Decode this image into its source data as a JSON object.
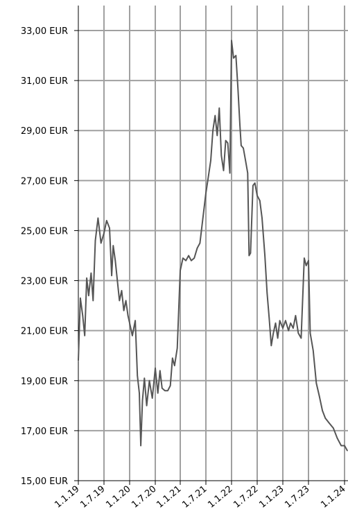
{
  "chart_data": {
    "type": "line",
    "title": "",
    "xlabel": "",
    "ylabel": "",
    "ylim": [
      15,
      34
    ],
    "grid": true,
    "y_ticks": [
      {
        "value": 15,
        "label": "15,00 EUR"
      },
      {
        "value": 17,
        "label": "17,00 EUR"
      },
      {
        "value": 19,
        "label": "19,00 EUR"
      },
      {
        "value": 21,
        "label": "21,00 EUR"
      },
      {
        "value": 23,
        "label": "23,00 EUR"
      },
      {
        "value": 25,
        "label": "25,00 EUR"
      },
      {
        "value": 27,
        "label": "27,00 EUR"
      },
      {
        "value": 29,
        "label": "29,00 EUR"
      },
      {
        "value": 31,
        "label": "31,00 EUR"
      },
      {
        "value": 33,
        "label": "33,00 EUR"
      }
    ],
    "x_ticks": [
      {
        "value": "2019-01-01",
        "label": "1.1.19"
      },
      {
        "value": "2019-07-01",
        "label": "1.7.19"
      },
      {
        "value": "2020-01-01",
        "label": "1.1.20"
      },
      {
        "value": "2020-07-01",
        "label": "1.7.20"
      },
      {
        "value": "2021-01-01",
        "label": "1.1.21"
      },
      {
        "value": "2021-07-01",
        "label": "1.7.21"
      },
      {
        "value": "2022-01-01",
        "label": "1.1.22"
      },
      {
        "value": "2022-07-01",
        "label": "1.7.22"
      },
      {
        "value": "2023-01-01",
        "label": "1.1.23"
      },
      {
        "value": "2023-07-01",
        "label": "1.7.23"
      },
      {
        "value": "2024-01-01",
        "label": "1.1.24"
      }
    ],
    "colors": {
      "line": "#555555",
      "grid": "#a0a0a0",
      "axis": "#000000"
    },
    "series": [
      {
        "points": [
          [
            "2019-01-01",
            19.8
          ],
          [
            "2019-01-15",
            22.3
          ],
          [
            "2019-02-01",
            21.6
          ],
          [
            "2019-02-15",
            20.8
          ],
          [
            "2019-03-01",
            23.1
          ],
          [
            "2019-03-15",
            22.4
          ],
          [
            "2019-04-01",
            23.3
          ],
          [
            "2019-04-15",
            22.2
          ],
          [
            "2019-05-01",
            24.6
          ],
          [
            "2019-05-20",
            25.5
          ],
          [
            "2019-06-10",
            24.5
          ],
          [
            "2019-07-01",
            24.9
          ],
          [
            "2019-07-20",
            25.4
          ],
          [
            "2019-08-10",
            25.1
          ],
          [
            "2019-08-25",
            23.2
          ],
          [
            "2019-09-05",
            24.4
          ],
          [
            "2019-09-20",
            23.8
          ],
          [
            "2019-10-05",
            23.0
          ],
          [
            "2019-10-20",
            22.2
          ],
          [
            "2019-11-05",
            22.6
          ],
          [
            "2019-11-20",
            21.8
          ],
          [
            "2019-12-05",
            22.2
          ],
          [
            "2019-12-20",
            21.6
          ],
          [
            "2020-01-01",
            21.3
          ],
          [
            "2020-01-20",
            20.8
          ],
          [
            "2020-02-10",
            21.4
          ],
          [
            "2020-02-25",
            19.2
          ],
          [
            "2020-03-10",
            18.5
          ],
          [
            "2020-03-20",
            16.4
          ],
          [
            "2020-04-01",
            18.2
          ],
          [
            "2020-04-15",
            19.1
          ],
          [
            "2020-05-01",
            18.0
          ],
          [
            "2020-05-20",
            19.0
          ],
          [
            "2020-06-10",
            18.3
          ],
          [
            "2020-07-01",
            19.5
          ],
          [
            "2020-07-20",
            18.5
          ],
          [
            "2020-08-05",
            19.4
          ],
          [
            "2020-08-20",
            18.7
          ],
          [
            "2020-09-10",
            18.6
          ],
          [
            "2020-10-01",
            18.6
          ],
          [
            "2020-10-20",
            18.8
          ],
          [
            "2020-11-05",
            19.9
          ],
          [
            "2020-11-20",
            19.6
          ],
          [
            "2020-12-10",
            20.3
          ],
          [
            "2021-01-01",
            23.4
          ],
          [
            "2021-01-20",
            23.9
          ],
          [
            "2021-02-10",
            23.8
          ],
          [
            "2021-03-01",
            24.0
          ],
          [
            "2021-03-20",
            23.8
          ],
          [
            "2021-04-10",
            23.9
          ],
          [
            "2021-05-01",
            24.3
          ],
          [
            "2021-05-20",
            24.5
          ],
          [
            "2021-06-10",
            25.5
          ],
          [
            "2021-07-01",
            26.5
          ],
          [
            "2021-07-20",
            27.2
          ],
          [
            "2021-08-05",
            27.8
          ],
          [
            "2021-08-20",
            29.0
          ],
          [
            "2021-09-05",
            29.6
          ],
          [
            "2021-09-20",
            28.8
          ],
          [
            "2021-10-05",
            29.9
          ],
          [
            "2021-10-20",
            28.0
          ],
          [
            "2021-11-05",
            27.4
          ],
          [
            "2021-11-20",
            28.6
          ],
          [
            "2021-12-05",
            28.5
          ],
          [
            "2021-12-20",
            27.3
          ],
          [
            "2022-01-01",
            32.6
          ],
          [
            "2022-01-15",
            31.9
          ],
          [
            "2022-02-01",
            32.0
          ],
          [
            "2022-02-15",
            30.7
          ],
          [
            "2022-03-01",
            29.2
          ],
          [
            "2022-03-10",
            28.4
          ],
          [
            "2022-03-25",
            28.3
          ],
          [
            "2022-04-10",
            27.8
          ],
          [
            "2022-04-25",
            27.3
          ],
          [
            "2022-05-05",
            24.0
          ],
          [
            "2022-05-15",
            24.1
          ],
          [
            "2022-06-01",
            26.8
          ],
          [
            "2022-06-15",
            26.9
          ],
          [
            "2022-07-01",
            26.4
          ],
          [
            "2022-07-20",
            26.2
          ],
          [
            "2022-08-05",
            25.5
          ],
          [
            "2022-08-25",
            24.0
          ],
          [
            "2022-09-10",
            22.5
          ],
          [
            "2022-09-25",
            21.5
          ],
          [
            "2022-10-10",
            20.4
          ],
          [
            "2022-10-25",
            20.9
          ],
          [
            "2022-11-10",
            21.3
          ],
          [
            "2022-11-25",
            20.7
          ],
          [
            "2022-12-10",
            21.4
          ],
          [
            "2023-01-01",
            21.1
          ],
          [
            "2023-01-20",
            21.4
          ],
          [
            "2023-02-10",
            21.0
          ],
          [
            "2023-02-25",
            21.3
          ],
          [
            "2023-03-15",
            21.1
          ],
          [
            "2023-04-01",
            21.6
          ],
          [
            "2023-04-20",
            20.9
          ],
          [
            "2023-05-10",
            20.7
          ],
          [
            "2023-06-01",
            23.9
          ],
          [
            "2023-06-15",
            23.6
          ],
          [
            "2023-07-01",
            23.8
          ],
          [
            "2023-07-10",
            20.9
          ],
          [
            "2023-07-25",
            20.2
          ],
          [
            "2023-08-10",
            18.9
          ],
          [
            "2023-08-25",
            18.4
          ],
          [
            "2023-09-10",
            17.8
          ],
          [
            "2023-09-25",
            17.5
          ],
          [
            "2023-10-15",
            17.3
          ],
          [
            "2023-11-05",
            17.1
          ],
          [
            "2023-11-25",
            16.7
          ],
          [
            "2023-12-15",
            16.4
          ],
          [
            "2024-01-01",
            16.4
          ],
          [
            "2024-01-15",
            16.2
          ]
        ]
      }
    ]
  }
}
